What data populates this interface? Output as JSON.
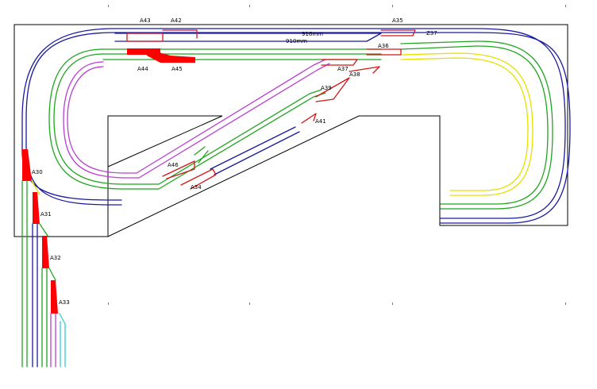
{
  "colors": {
    "outer_loop": "#1a1aa0",
    "main_line": "#1fa51f",
    "inner_line": "#b93fd0",
    "branch": "#e6e000",
    "siding": "#34c9d6",
    "turnout": "#d21818",
    "turnout_fill": "#ff0000",
    "baseboard": "#000000"
  },
  "labels": {
    "A43": "A43",
    "A42": "A42",
    "A35": "A35",
    "Z37": "Z37",
    "len_916": "916mm",
    "len_910": "910mm",
    "A36": "A36",
    "A44": "A44",
    "A45": "A45",
    "A37": "A37",
    "A38": "A38",
    "A39": "A39",
    "A41": "A41",
    "A46": "A46",
    "A34": "A34",
    "A30": "A30",
    "A31": "A31",
    "A32": "A32",
    "A33": "A33"
  }
}
